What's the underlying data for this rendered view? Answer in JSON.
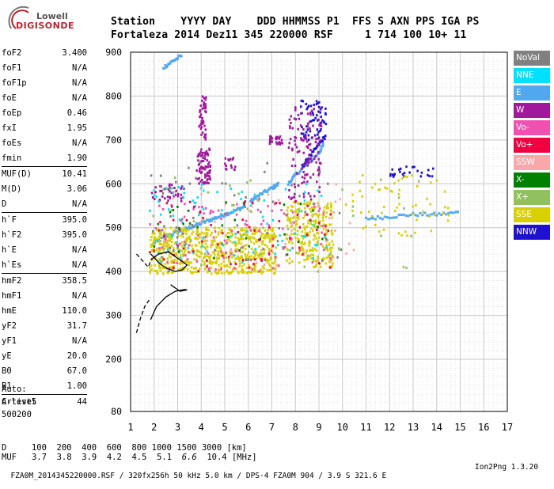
{
  "logo": {
    "brand_top": "Lowell",
    "brand_bottom": "DIGISONDE"
  },
  "header": {
    "line1": "Station    YYYY DAY    DDD HHMMSS P1  FFS S AXN PPS IGA PS",
    "line2": "Fortaleza 2014 Dez11 345 220000 RSF     1 714 100 10+ 11"
  },
  "params": [
    {
      "label": "foF2",
      "value": "3.400"
    },
    {
      "label": "foF1",
      "value": "N/A"
    },
    {
      "label": "foF1p",
      "value": "N/A"
    },
    {
      "label": "foE",
      "value": "N/A"
    },
    {
      "label": "foEp",
      "value": "0.46"
    },
    {
      "label": "fxI",
      "value": "1.95"
    },
    {
      "label": "foEs",
      "value": "N/A"
    },
    {
      "label": "fmin",
      "value": "1.90"
    },
    {
      "label": "MUF(D)",
      "value": "10.41"
    },
    {
      "label": "M(D)",
      "value": "3.06"
    },
    {
      "label": "D",
      "value": "N/A"
    },
    {
      "label": "h`F",
      "value": "395.0"
    },
    {
      "label": "h`F2",
      "value": "395.0"
    },
    {
      "label": "h`E",
      "value": "N/A"
    },
    {
      "label": "h`Es",
      "value": "N/A"
    },
    {
      "label": "hmF2",
      "value": "358.5"
    },
    {
      "label": "hmF1",
      "value": "N/A"
    },
    {
      "label": "hmE",
      "value": "110.0"
    },
    {
      "label": "yF2",
      "value": "31.7"
    },
    {
      "label": "yF1",
      "value": "N/A"
    },
    {
      "label": "yE",
      "value": "20.0"
    },
    {
      "label": "B0",
      "value": "67.0"
    },
    {
      "label": "B1",
      "value": "1.00"
    },
    {
      "label": "C-level",
      "value": "44"
    }
  ],
  "auto": {
    "line1": "Auto:",
    "line2": "Artist5",
    "line3": "500200"
  },
  "legend": [
    {
      "label": "NoVal",
      "color": "#808080"
    },
    {
      "label": "NNE",
      "color": "#00e0ff"
    },
    {
      "label": "E",
      "color": "#50a8f0"
    },
    {
      "label": "W",
      "color": "#a0189c"
    },
    {
      "label": "Vo-",
      "color": "#f050b0"
    },
    {
      "label": "Vo+",
      "color": "#f00040"
    },
    {
      "label": "SSW",
      "color": "#f8a8a8"
    },
    {
      "label": "X-",
      "color": "#008000"
    },
    {
      "label": "X+",
      "color": "#90c060"
    },
    {
      "label": "SSE",
      "color": "#d8d000"
    },
    {
      "label": "NNW",
      "color": "#2010d0"
    }
  ],
  "footer": {
    "line1": "D     100  200  400  600  800 1000 1500 3000 [km]",
    "muf_label": "MUF",
    "muf_values": [
      "3.7",
      "3.8",
      "3.9",
      "4.2",
      "4.5",
      "5.1",
      "6.6",
      "10.4"
    ],
    "muf_unit": "[MHz]",
    "line3": "FZA0M_2014345220000.RSF / 320fx256h 50 kHz 5.0 km / DPS-4 FZA0M 904 / 3.9 S 321.6 E",
    "version": "Ion2Png 1.3.20"
  },
  "chart_data": {
    "type": "scatter",
    "xlim": [
      1,
      17
    ],
    "ylim": [
      80,
      900
    ],
    "x_ticks": [
      "1",
      "2",
      "3",
      "4",
      "5",
      "6",
      "7",
      "8",
      "9",
      "10",
      "11",
      "12",
      "13",
      "14",
      "15",
      "16",
      "17"
    ],
    "y_ticks": [
      "80",
      "200",
      "300",
      "400",
      "500",
      "600",
      "700",
      "800",
      "900"
    ],
    "grid": true,
    "legend_position": "right",
    "clusters": [
      {
        "label": "E",
        "color": "#50a8f0",
        "kind": "trace",
        "x": [
          1.9,
          2.5,
          3.0,
          3.5,
          4.0,
          4.5,
          5.0,
          5.5,
          5.9
        ],
        "y": [
          460,
          480,
          490,
          500,
          510,
          520,
          530,
          540,
          550
        ]
      },
      {
        "label": "E",
        "color": "#50a8f0",
        "kind": "trace",
        "x": [
          6.1,
          6.5,
          7.0,
          7.3
        ],
        "y": [
          560,
          575,
          590,
          600
        ]
      },
      {
        "label": "E",
        "color": "#50a8f0",
        "kind": "trace",
        "x": [
          7.7,
          8.0,
          8.5,
          9.0,
          9.2
        ],
        "y": [
          600,
          620,
          645,
          670,
          690
        ]
      },
      {
        "label": "E",
        "color": "#50a8f0",
        "kind": "trace",
        "x": [
          11.0,
          12.0,
          13.0,
          14.0,
          15.0
        ],
        "y": [
          520,
          525,
          530,
          530,
          535
        ]
      },
      {
        "label": "E",
        "color": "#50a8f0",
        "kind": "trace",
        "x": [
          2.4,
          2.8,
          3.2
        ],
        "y": [
          865,
          880,
          893
        ]
      },
      {
        "label": "NNW",
        "color": "#2010d0",
        "kind": "trace",
        "x": [
          8.3,
          8.6,
          9.0,
          9.3
        ],
        "y": [
          640,
          660,
          690,
          710
        ]
      },
      {
        "label": "NNW",
        "color": "#2010d0",
        "kind": "cloud",
        "x": [
          8.2,
          9.3
        ],
        "y": [
          700,
          790
        ],
        "n": 60
      },
      {
        "label": "NNW",
        "color": "#2010d0",
        "kind": "cloud",
        "x": [
          12.0,
          14.0
        ],
        "y": [
          615,
          640
        ],
        "n": 25
      },
      {
        "label": "W",
        "color": "#a0189c",
        "kind": "cloud",
        "x": [
          3.8,
          4.4
        ],
        "y": [
          600,
          680
        ],
        "n": 80
      },
      {
        "label": "W",
        "color": "#a0189c",
        "kind": "cloud",
        "x": [
          3.9,
          4.2
        ],
        "y": [
          700,
          800
        ],
        "n": 45
      },
      {
        "label": "W",
        "color": "#a0189c",
        "kind": "cloud",
        "x": [
          1.9,
          3.3
        ],
        "y": [
          560,
          600
        ],
        "n": 40
      },
      {
        "label": "W",
        "color": "#a0189c",
        "kind": "cloud",
        "x": [
          6.9,
          7.5
        ],
        "y": [
          690,
          710
        ],
        "n": 30
      },
      {
        "label": "W",
        "color": "#a0189c",
        "kind": "cloud",
        "x": [
          7.7,
          9.1
        ],
        "y": [
          560,
          780
        ],
        "n": 120
      },
      {
        "label": "W",
        "color": "#a0189c",
        "kind": "cloud",
        "x": [
          5.0,
          5.6
        ],
        "y": [
          630,
          660
        ],
        "n": 15
      },
      {
        "label": "SSE",
        "color": "#d8d000",
        "kind": "cloud",
        "x": [
          1.8,
          7.2
        ],
        "y": [
          395,
          500
        ],
        "n": 650
      },
      {
        "label": "SSE",
        "color": "#d8d000",
        "kind": "cloud",
        "x": [
          7.6,
          9.6
        ],
        "y": [
          410,
          560
        ],
        "n": 250
      },
      {
        "label": "SSE",
        "color": "#d8d000",
        "kind": "cloud",
        "x": [
          10.0,
          14.6
        ],
        "y": [
          480,
          620
        ],
        "n": 60
      },
      {
        "label": "NNE",
        "color": "#00e0ff",
        "kind": "cloud",
        "x": [
          1.8,
          9.5
        ],
        "y": [
          420,
          600
        ],
        "n": 90
      },
      {
        "label": "Vo-",
        "color": "#f050b0",
        "kind": "cloud",
        "x": [
          1.8,
          9.5
        ],
        "y": [
          400,
          560
        ],
        "n": 110
      },
      {
        "label": "Vo+",
        "color": "#f00040",
        "kind": "cloud",
        "x": [
          1.8,
          9.5
        ],
        "y": [
          400,
          560
        ],
        "n": 70
      },
      {
        "label": "SSW",
        "color": "#f8a8a8",
        "kind": "cloud",
        "x": [
          1.8,
          10.5
        ],
        "y": [
          410,
          600
        ],
        "n": 50
      },
      {
        "label": "X-",
        "color": "#008000",
        "kind": "cloud",
        "x": [
          1.8,
          9.5
        ],
        "y": [
          410,
          560
        ],
        "n": 30
      },
      {
        "label": "X+",
        "color": "#90c060",
        "kind": "cloud",
        "x": [
          1.8,
          13.5
        ],
        "y": [
          400,
          620
        ],
        "n": 50
      },
      {
        "label": "NoVal",
        "color": "#808080",
        "kind": "cloud",
        "x": [
          1.8,
          10.0
        ],
        "y": [
          400,
          650
        ],
        "n": 60
      }
    ],
    "profile_solid": {
      "x": [
        1.85,
        2.0,
        2.2,
        2.5,
        2.9,
        3.2,
        3.4,
        3.0,
        2.6,
        2.2,
        2.0,
        1.9
      ],
      "y": [
        440,
        432,
        420,
        408,
        400,
        404,
        415,
        430,
        445,
        440,
        433,
        428
      ]
    },
    "profile_solid_low": {
      "x": [
        1.85,
        2.1,
        2.5,
        2.9,
        3.3,
        3.4,
        3.1,
        2.7
      ],
      "y": [
        290,
        320,
        342,
        355,
        359,
        358,
        355,
        370
      ]
    },
    "profile_dashed": {
      "x": [
        1.25,
        1.4,
        1.6,
        1.85
      ],
      "y": [
        260,
        290,
        320,
        340
      ]
    },
    "profile_dashed_top": {
      "x": [
        1.25,
        1.5,
        1.75,
        1.9
      ],
      "y": [
        440,
        425,
        410,
        430
      ]
    }
  }
}
